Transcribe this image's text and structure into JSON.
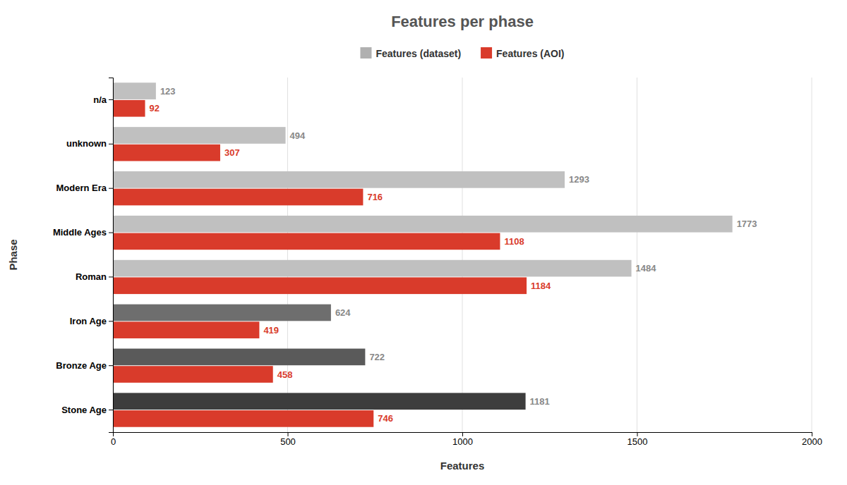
{
  "chart_data": {
    "type": "bar",
    "orientation": "horizontal",
    "title": "Features per phase",
    "xlabel": "Features",
    "ylabel": "Phase",
    "categories": [
      "Stone Age",
      "Bronze Age",
      "Iron Age",
      "Roman",
      "Middle Ages",
      "Modern Era",
      "unknown",
      "n/a"
    ],
    "series": [
      {
        "name": "Features (dataset)",
        "color": "#b0b0b0",
        "colors": [
          "#3d3d3d",
          "#5a5a5a",
          "#6e6e6e",
          "#c0c0c0",
          "#c0c0c0",
          "#c0c0c0",
          "#c0c0c0",
          "#c0c0c0"
        ],
        "values": [
          1181,
          722,
          624,
          1484,
          1773,
          1293,
          494,
          123
        ]
      },
      {
        "name": "Features (AOI)",
        "color": "#d93b2b",
        "values": [
          746,
          458,
          419,
          1184,
          1108,
          716,
          307,
          92
        ]
      }
    ],
    "xlim": [
      0,
      2000
    ],
    "xticks": [
      0,
      500,
      1000,
      1500,
      2000
    ],
    "grid": true,
    "legend": "top",
    "data_labels": true
  }
}
